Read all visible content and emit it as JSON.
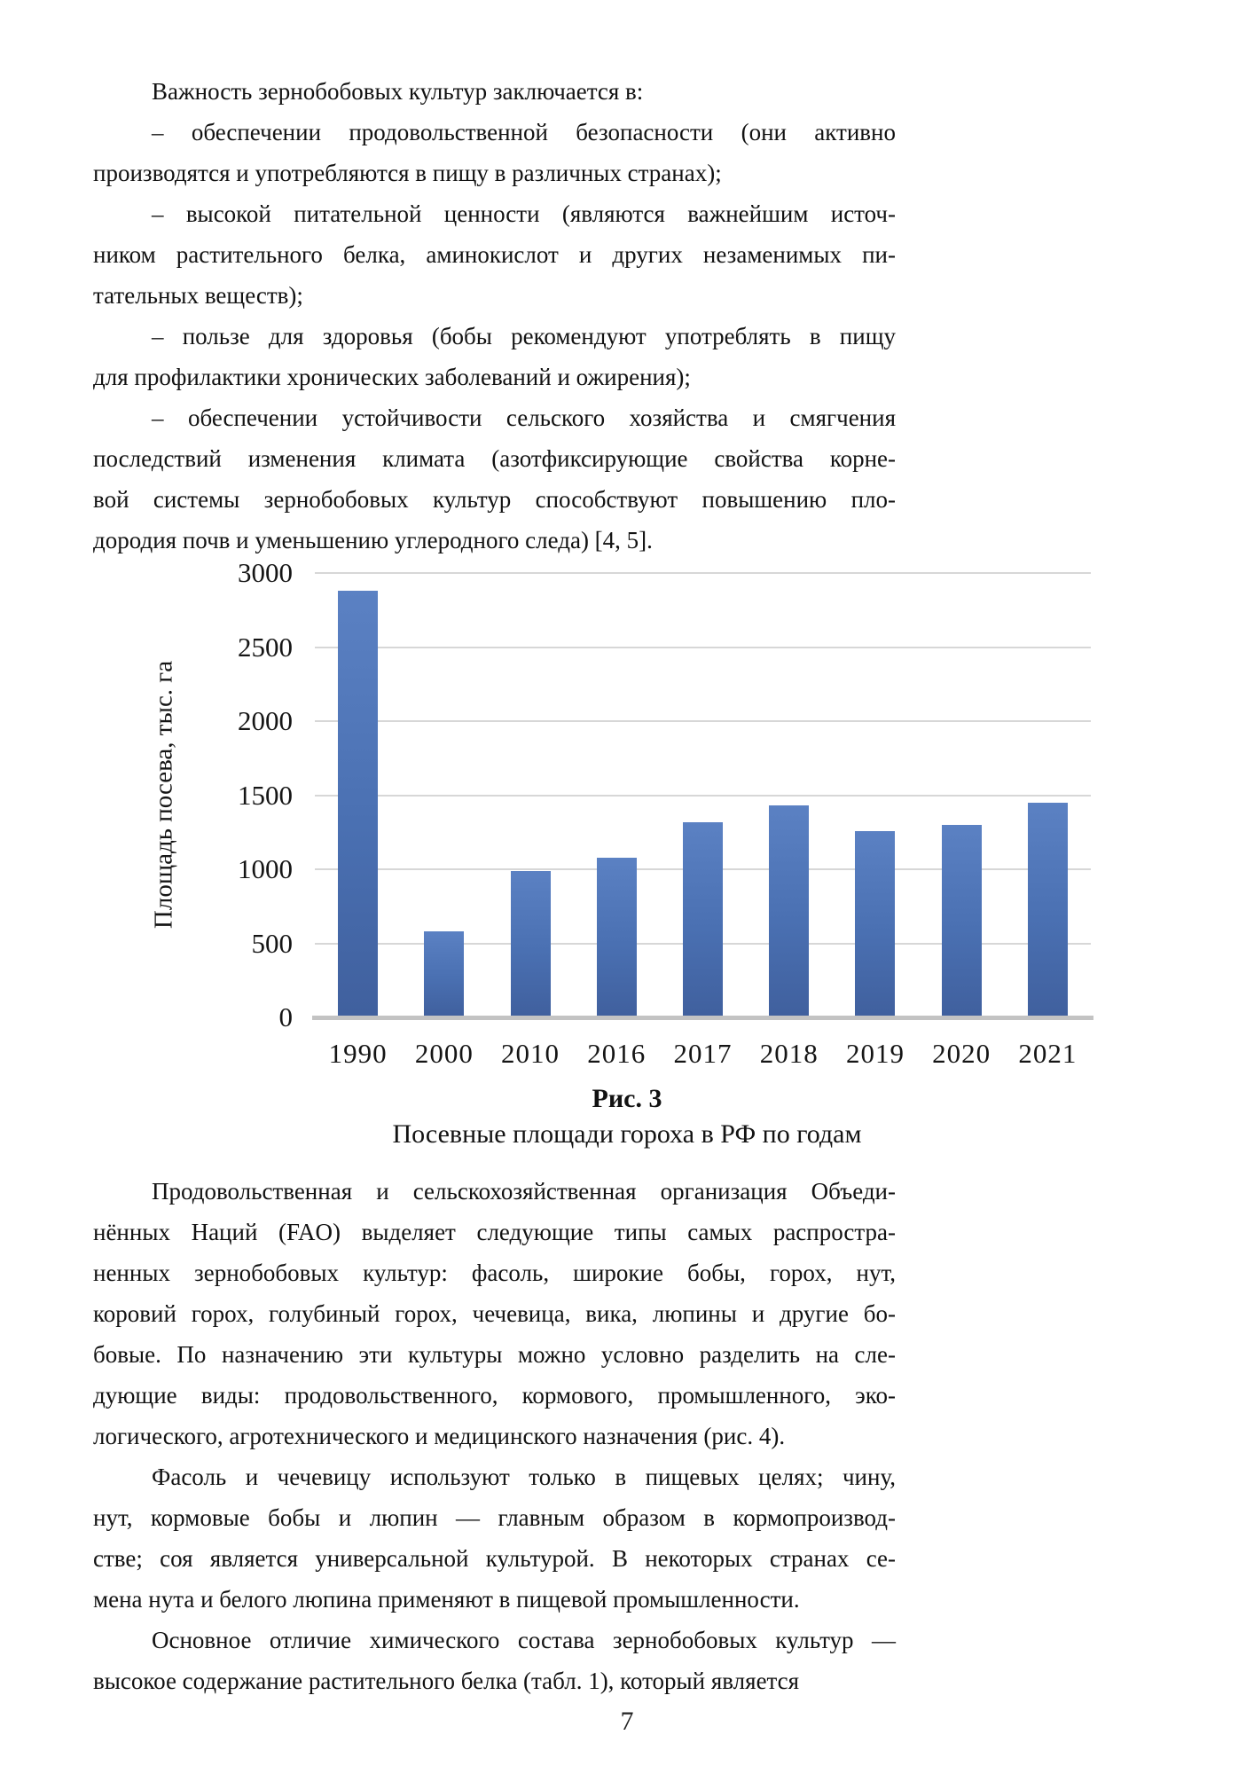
{
  "page": {
    "page_number": "7",
    "paragraphs_top": [
      {
        "lines": [
          "Важность зернобобовых культур заключается в:"
        ]
      },
      {
        "lines": [
          "– обеспечении продовольственной безопасности (они активно",
          "производятся и употребляются в пищу в различных странах);"
        ]
      },
      {
        "lines": [
          "– высокой питательной ценности (являются важнейшим источ-",
          "ником растительного белка, аминокислот и других незаменимых пи-",
          "тательных веществ);"
        ]
      },
      {
        "lines": [
          "– пользе для здоровья (бобы рекомендуют употреблять в пищу",
          "для профилактики хронических заболеваний и ожирения);"
        ]
      },
      {
        "lines": [
          "– обеспечении устойчивости сельского хозяйства и смягчения",
          "последствий изменения климата (азотфиксирующие свойства корне-",
          "вой системы зернобобовых культур способствуют повышению пло-",
          "дородия почв и уменьшению углеродного следа) [4, 5]."
        ]
      }
    ],
    "figure": {
      "label": "Рис. 3",
      "caption": "Посевные площади гороха в РФ по годам"
    },
    "paragraphs_bottom": [
      {
        "lines": [
          "Продовольственная и сельскохозяйственная организация Объеди-",
          "нённых Наций (FAO) выделяет следующие типы самых распростра-",
          "ненных зернобобовых культур: фасоль, широкие бобы, горох, нут,",
          "коровий горох, голубиный горох, чечевица, вика, люпины и другие бо-",
          "бовые. По назначению эти культуры можно условно разделить на сле-",
          "дующие виды: продовольственного, кормового, промышленного, эко-",
          "логического, агротехнического и медицинского назначения (рис. 4)."
        ]
      },
      {
        "lines": [
          "Фасоль и чечевицу используют только в пищевых целях; чину,",
          "нут, кормовые бобы и люпин — главным образом в кормопроизвод-",
          "стве; соя является универсальной культурой. В некоторых странах се-",
          "мена нута и белого люпина применяют в пищевой промышленности."
        ]
      },
      {
        "lines": [
          "Основное отличие химического состава зернобобовых культур —",
          "высокое содержание растительного белка (табл. 1), который является"
        ]
      }
    ]
  },
  "chart_data": {
    "type": "bar",
    "title": "",
    "categories": [
      "1990",
      "2000",
      "2010",
      "2016",
      "2017",
      "2018",
      "2019",
      "2020",
      "2021"
    ],
    "values": [
      2880,
      580,
      990,
      1080,
      1320,
      1430,
      1260,
      1300,
      1450
    ],
    "xlabel": "",
    "ylabel": "Площадь посева, тыс. га",
    "ylim": [
      0,
      3000
    ],
    "yticks": [
      0,
      500,
      1000,
      1500,
      2000,
      2500,
      3000
    ],
    "grid": true,
    "legend": false,
    "bar_color": "#4a70b2",
    "bar_gradient_top": "#5b81c3",
    "bar_gradient_bottom": "#40609e",
    "gridline_color": "#d7d7d7",
    "baseline_color": "#c3c3c3"
  }
}
